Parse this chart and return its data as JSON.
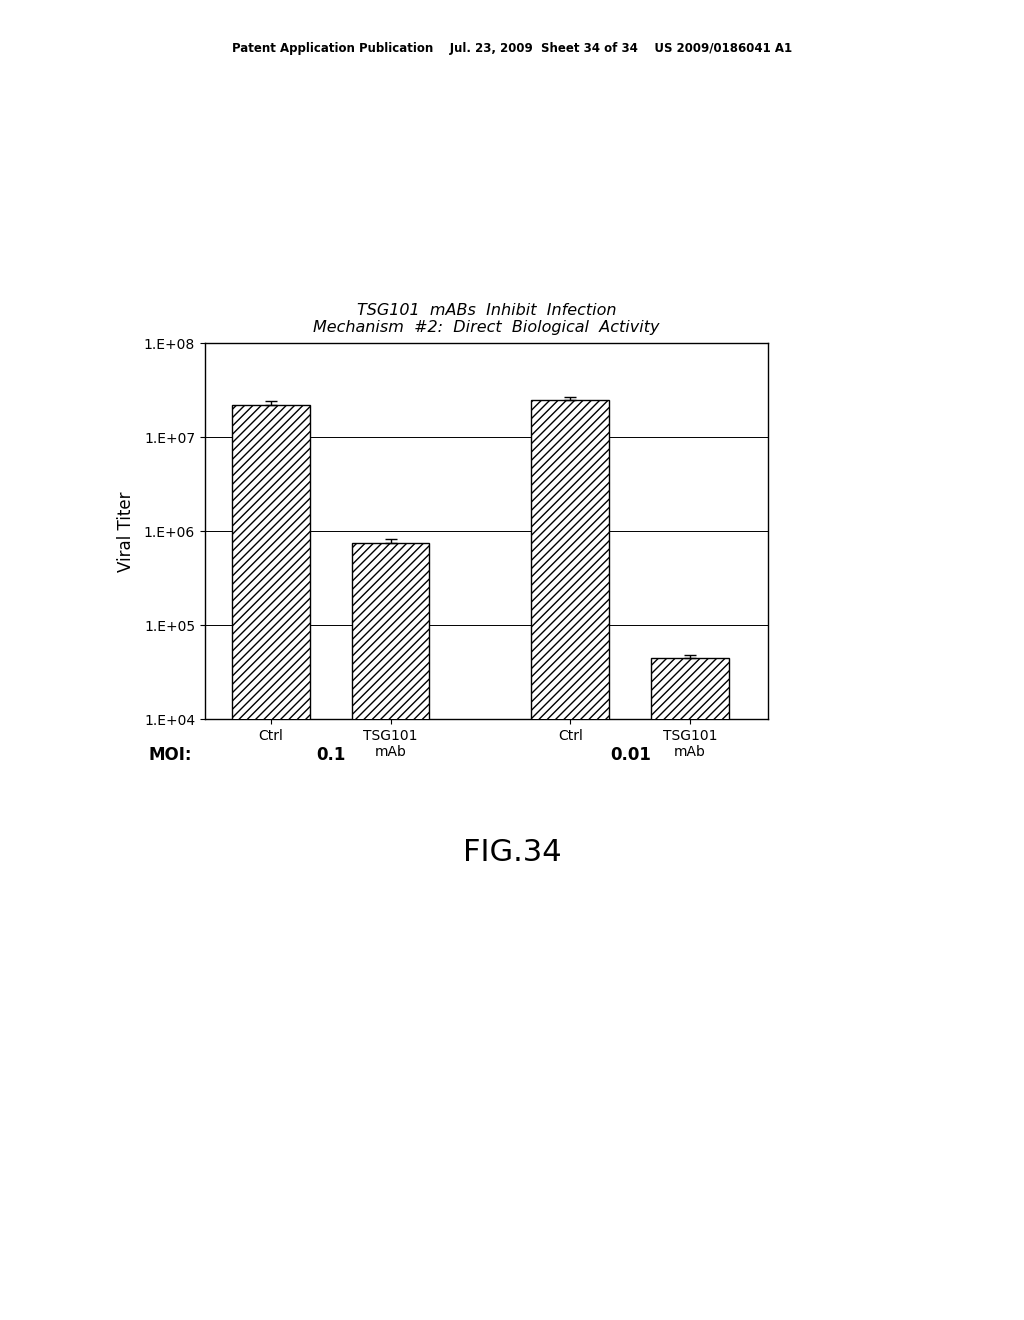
{
  "title_line1": "TSG101  mABs  Inhibit  Infection",
  "title_line2": "Mechanism  #2:  Direct  Biological  Activity",
  "ylabel": "Viral Titer",
  "bar_values": [
    22000000.0,
    750000.0,
    25000000.0,
    45000.0
  ],
  "bar_errors": [
    2500000.0,
    80000.0,
    1500000.0,
    3000.0
  ],
  "bar_labels": [
    "Ctrl",
    "TSG101\nmAb",
    "Ctrl",
    "TSG101\nmAb"
  ],
  "group_labels": [
    "0.1",
    "0.01"
  ],
  "moi_label": "MOI:",
  "ylim_log": [
    10000.0,
    100000000.0
  ],
  "ytick_values": [
    10000.0,
    100000.0,
    1000000.0,
    10000000.0,
    100000000.0
  ],
  "ytick_labels": [
    "1.E+04",
    "1.E+05",
    "1.E+06",
    "1.E+07",
    "1.E+08"
  ],
  "bar_color": "#ffffff",
  "bar_edgecolor": "#000000",
  "hatch_pattern": "////",
  "fig_caption": "FIG.34",
  "header_text": "Patent Application Publication    Jul. 23, 2009  Sheet 34 of 34    US 2009/0186041 A1",
  "background_color": "#ffffff"
}
